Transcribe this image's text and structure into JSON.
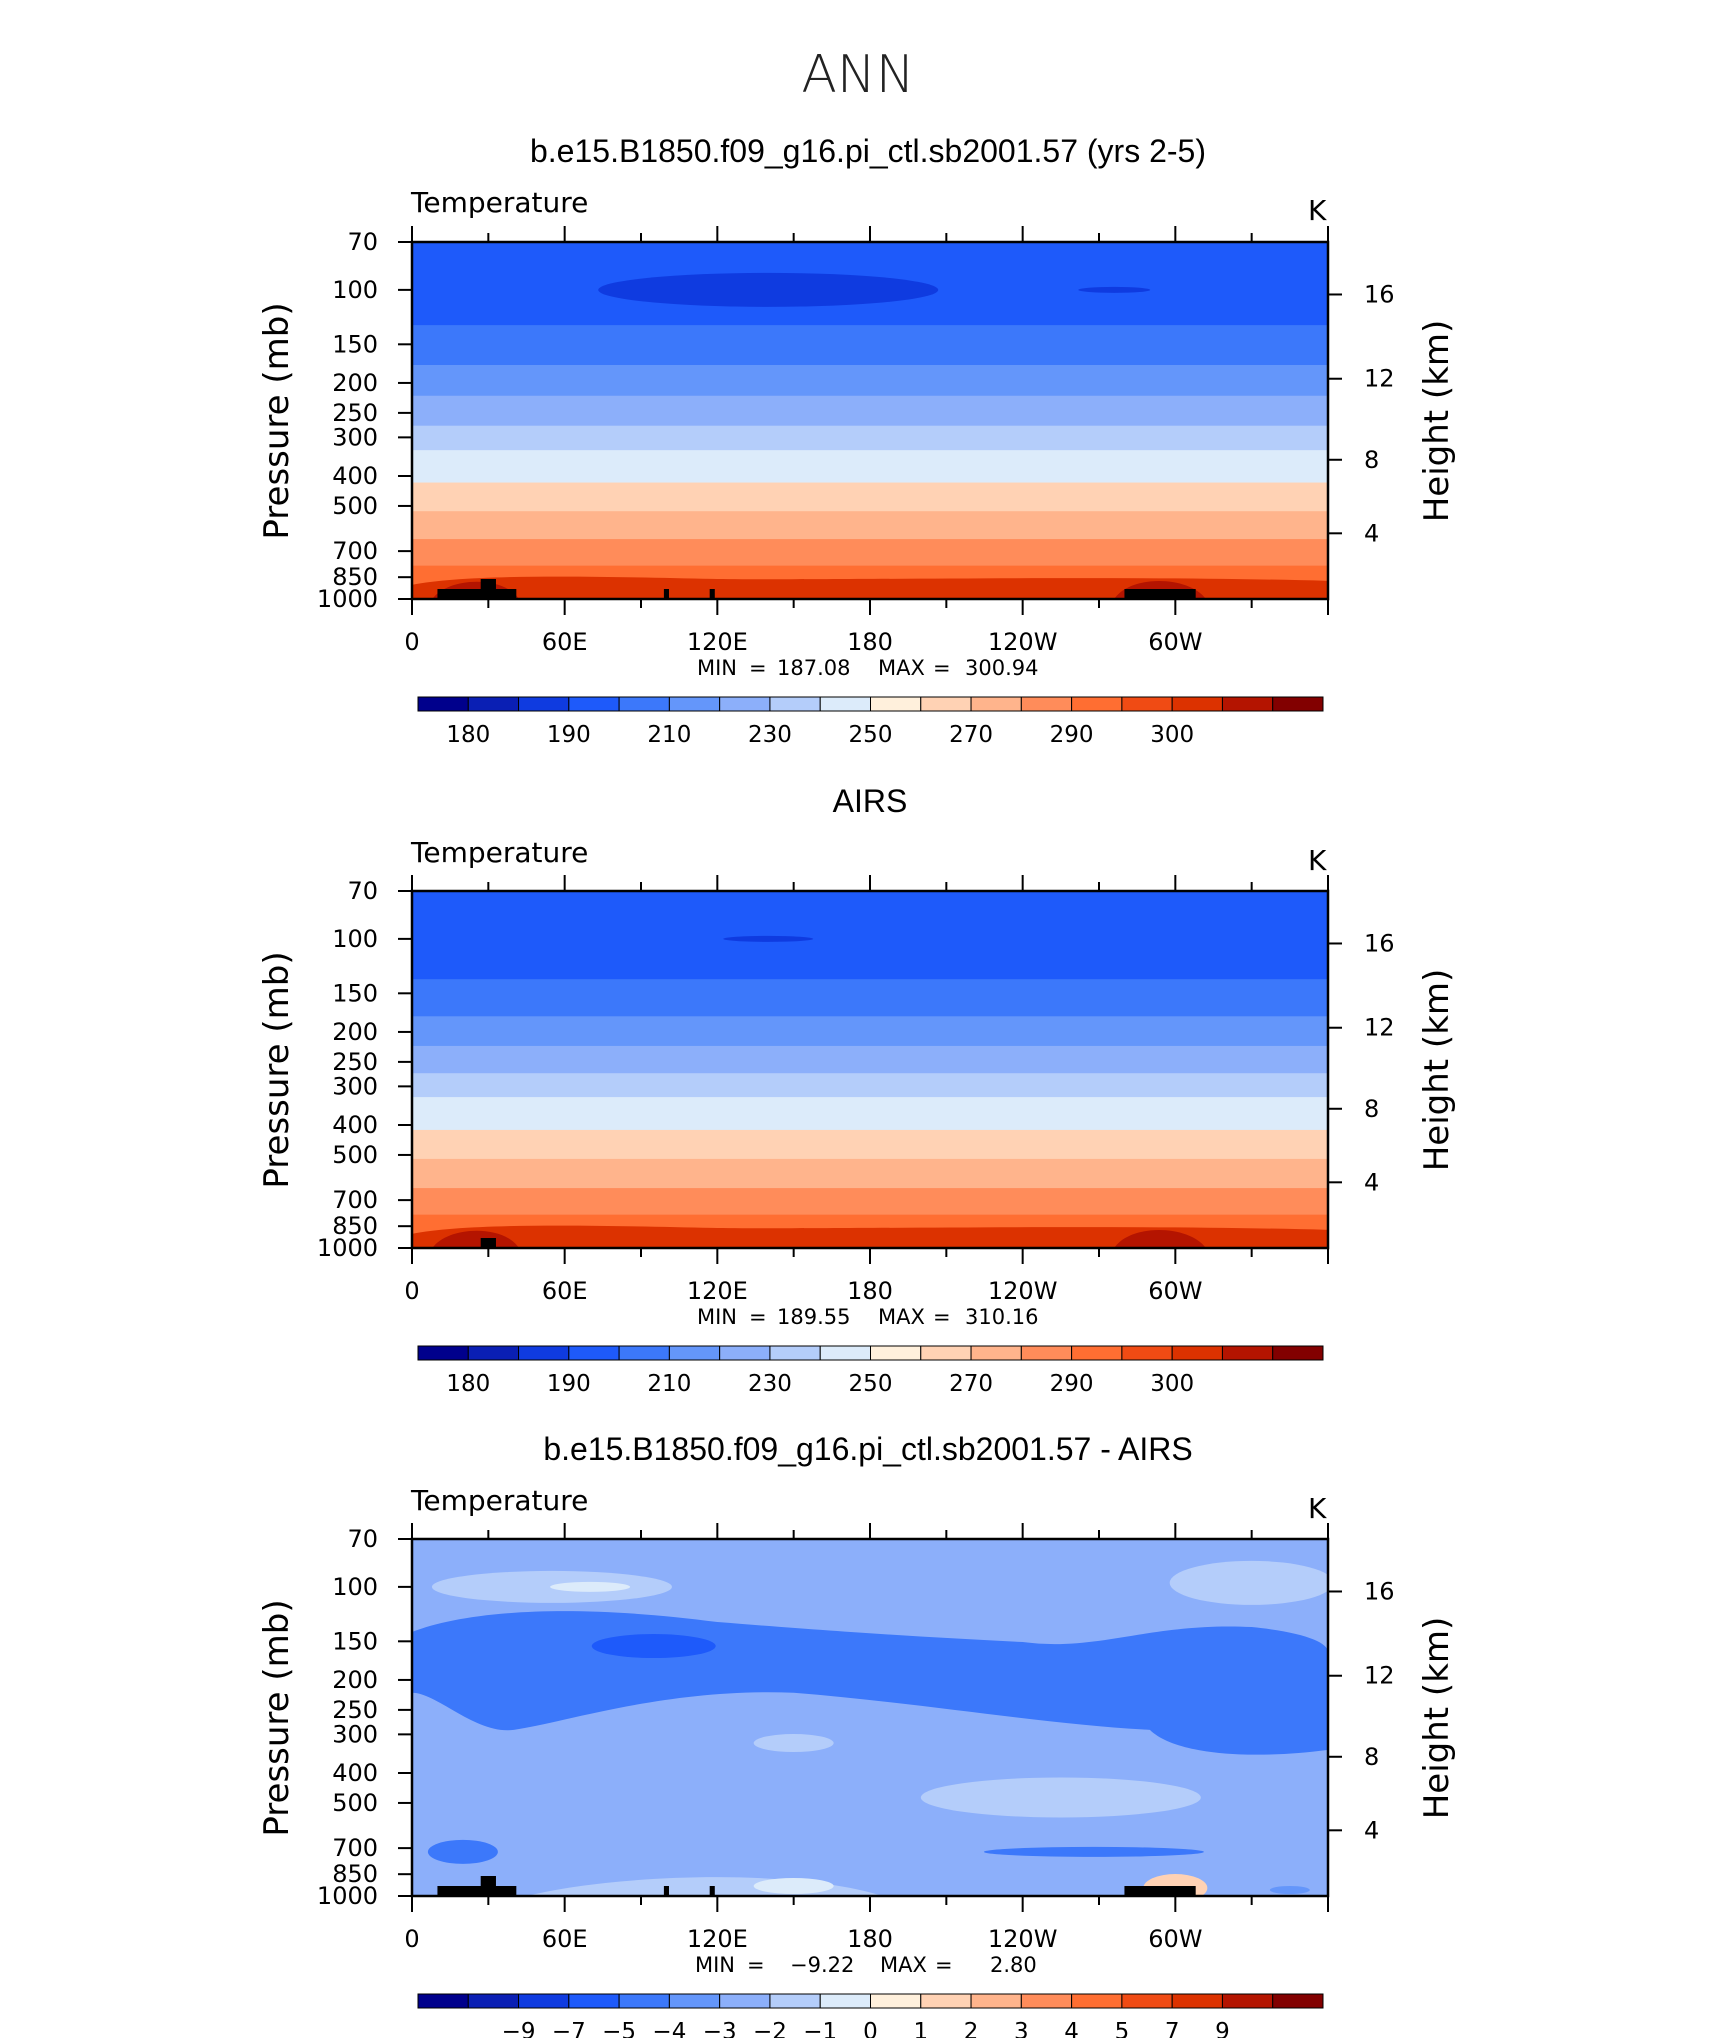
{
  "figure_title": "ANN",
  "colors": {
    "palette_18": [
      "#00008c",
      "#0a1fb4",
      "#0f3be0",
      "#1e5afa",
      "#3c78fa",
      "#6496fa",
      "#8caffa",
      "#b4cdfa",
      "#dcebfa",
      "#fff0dc",
      "#ffd2b4",
      "#ffb48c",
      "#ff8c5a",
      "#ff6e32",
      "#f04b14",
      "#dc3200",
      "#b41400",
      "#820000"
    ],
    "land": "#000000",
    "frame": "#000000"
  },
  "chart_data": [
    {
      "type": "heatmap",
      "title": "b.e15.B1850.f09_g16.pi_ctl.sb2001.57 (yrs 2-5)",
      "variable_label": "Temperature",
      "units_label": "K",
      "ylabel": "Pressure (mb)",
      "ylabel_right": "Height (km)",
      "x_tick_labels": [
        "0",
        "60E",
        "120E",
        "180",
        "120W",
        "60W"
      ],
      "x_range_deg": [
        0,
        360
      ],
      "y_tick_labels": [
        "70",
        "100",
        "150",
        "200",
        "250",
        "300",
        "400",
        "500",
        "700",
        "850",
        "1000"
      ],
      "y_range_mb": [
        70,
        1000
      ],
      "right_tick_labels": [
        "16",
        "12",
        "8",
        "4"
      ],
      "min_label": "MIN",
      "min_value": "187.08",
      "max_label": "MAX",
      "max_value": "300.94",
      "colorbar_labels": [
        "180",
        "190",
        "210",
        "230",
        "250",
        "270",
        "290",
        "300"
      ],
      "level_boundaries_mb": [
        70,
        130,
        175,
        220,
        275,
        330,
        420,
        520,
        640,
        780,
        900,
        1000
      ],
      "level_color_index": [
        3,
        4,
        5,
        6,
        7,
        8,
        10,
        11,
        12,
        13,
        14,
        15
      ]
    },
    {
      "type": "heatmap",
      "title": "AIRS",
      "variable_label": "Temperature",
      "units_label": "K",
      "ylabel": "Pressure (mb)",
      "ylabel_right": "Height (km)",
      "x_tick_labels": [
        "0",
        "60E",
        "120E",
        "180",
        "120W",
        "60W"
      ],
      "x_range_deg": [
        0,
        360
      ],
      "y_tick_labels": [
        "70",
        "100",
        "150",
        "200",
        "250",
        "300",
        "400",
        "500",
        "700",
        "850",
        "1000"
      ],
      "y_range_mb": [
        70,
        1000
      ],
      "right_tick_labels": [
        "16",
        "12",
        "8",
        "4"
      ],
      "min_label": "MIN",
      "min_value": "189.55",
      "max_label": "MAX",
      "max_value": "310.16",
      "colorbar_labels": [
        "180",
        "190",
        "210",
        "230",
        "250",
        "270",
        "290",
        "300"
      ],
      "level_boundaries_mb": [
        70,
        135,
        178,
        222,
        272,
        325,
        415,
        515,
        640,
        780,
        905,
        1000
      ],
      "level_color_index": [
        3,
        4,
        5,
        6,
        7,
        8,
        10,
        11,
        12,
        13,
        14,
        15
      ]
    },
    {
      "type": "heatmap",
      "title": "b.e15.B1850.f09_g16.pi_ctl.sb2001.57 - AIRS",
      "variable_label": "Temperature",
      "units_label": "K",
      "ylabel": "Pressure (mb)",
      "ylabel_right": "Height (km)",
      "x_tick_labels": [
        "0",
        "60E",
        "120E",
        "180",
        "120W",
        "60W"
      ],
      "x_range_deg": [
        0,
        360
      ],
      "y_tick_labels": [
        "70",
        "100",
        "150",
        "200",
        "250",
        "300",
        "400",
        "500",
        "700",
        "850",
        "1000"
      ],
      "y_range_mb": [
        70,
        1000
      ],
      "right_tick_labels": [
        "16",
        "12",
        "8",
        "4"
      ],
      "min_label": "MIN",
      "min_value": "−9.22",
      "max_label": "MAX",
      "max_value": "2.80",
      "colorbar_labels": [
        "−9",
        "−7",
        "−5",
        "−4",
        "−3",
        "−2",
        "−1",
        "0",
        "1",
        "2",
        "3",
        "4",
        "5",
        "7",
        "9"
      ]
    }
  ]
}
